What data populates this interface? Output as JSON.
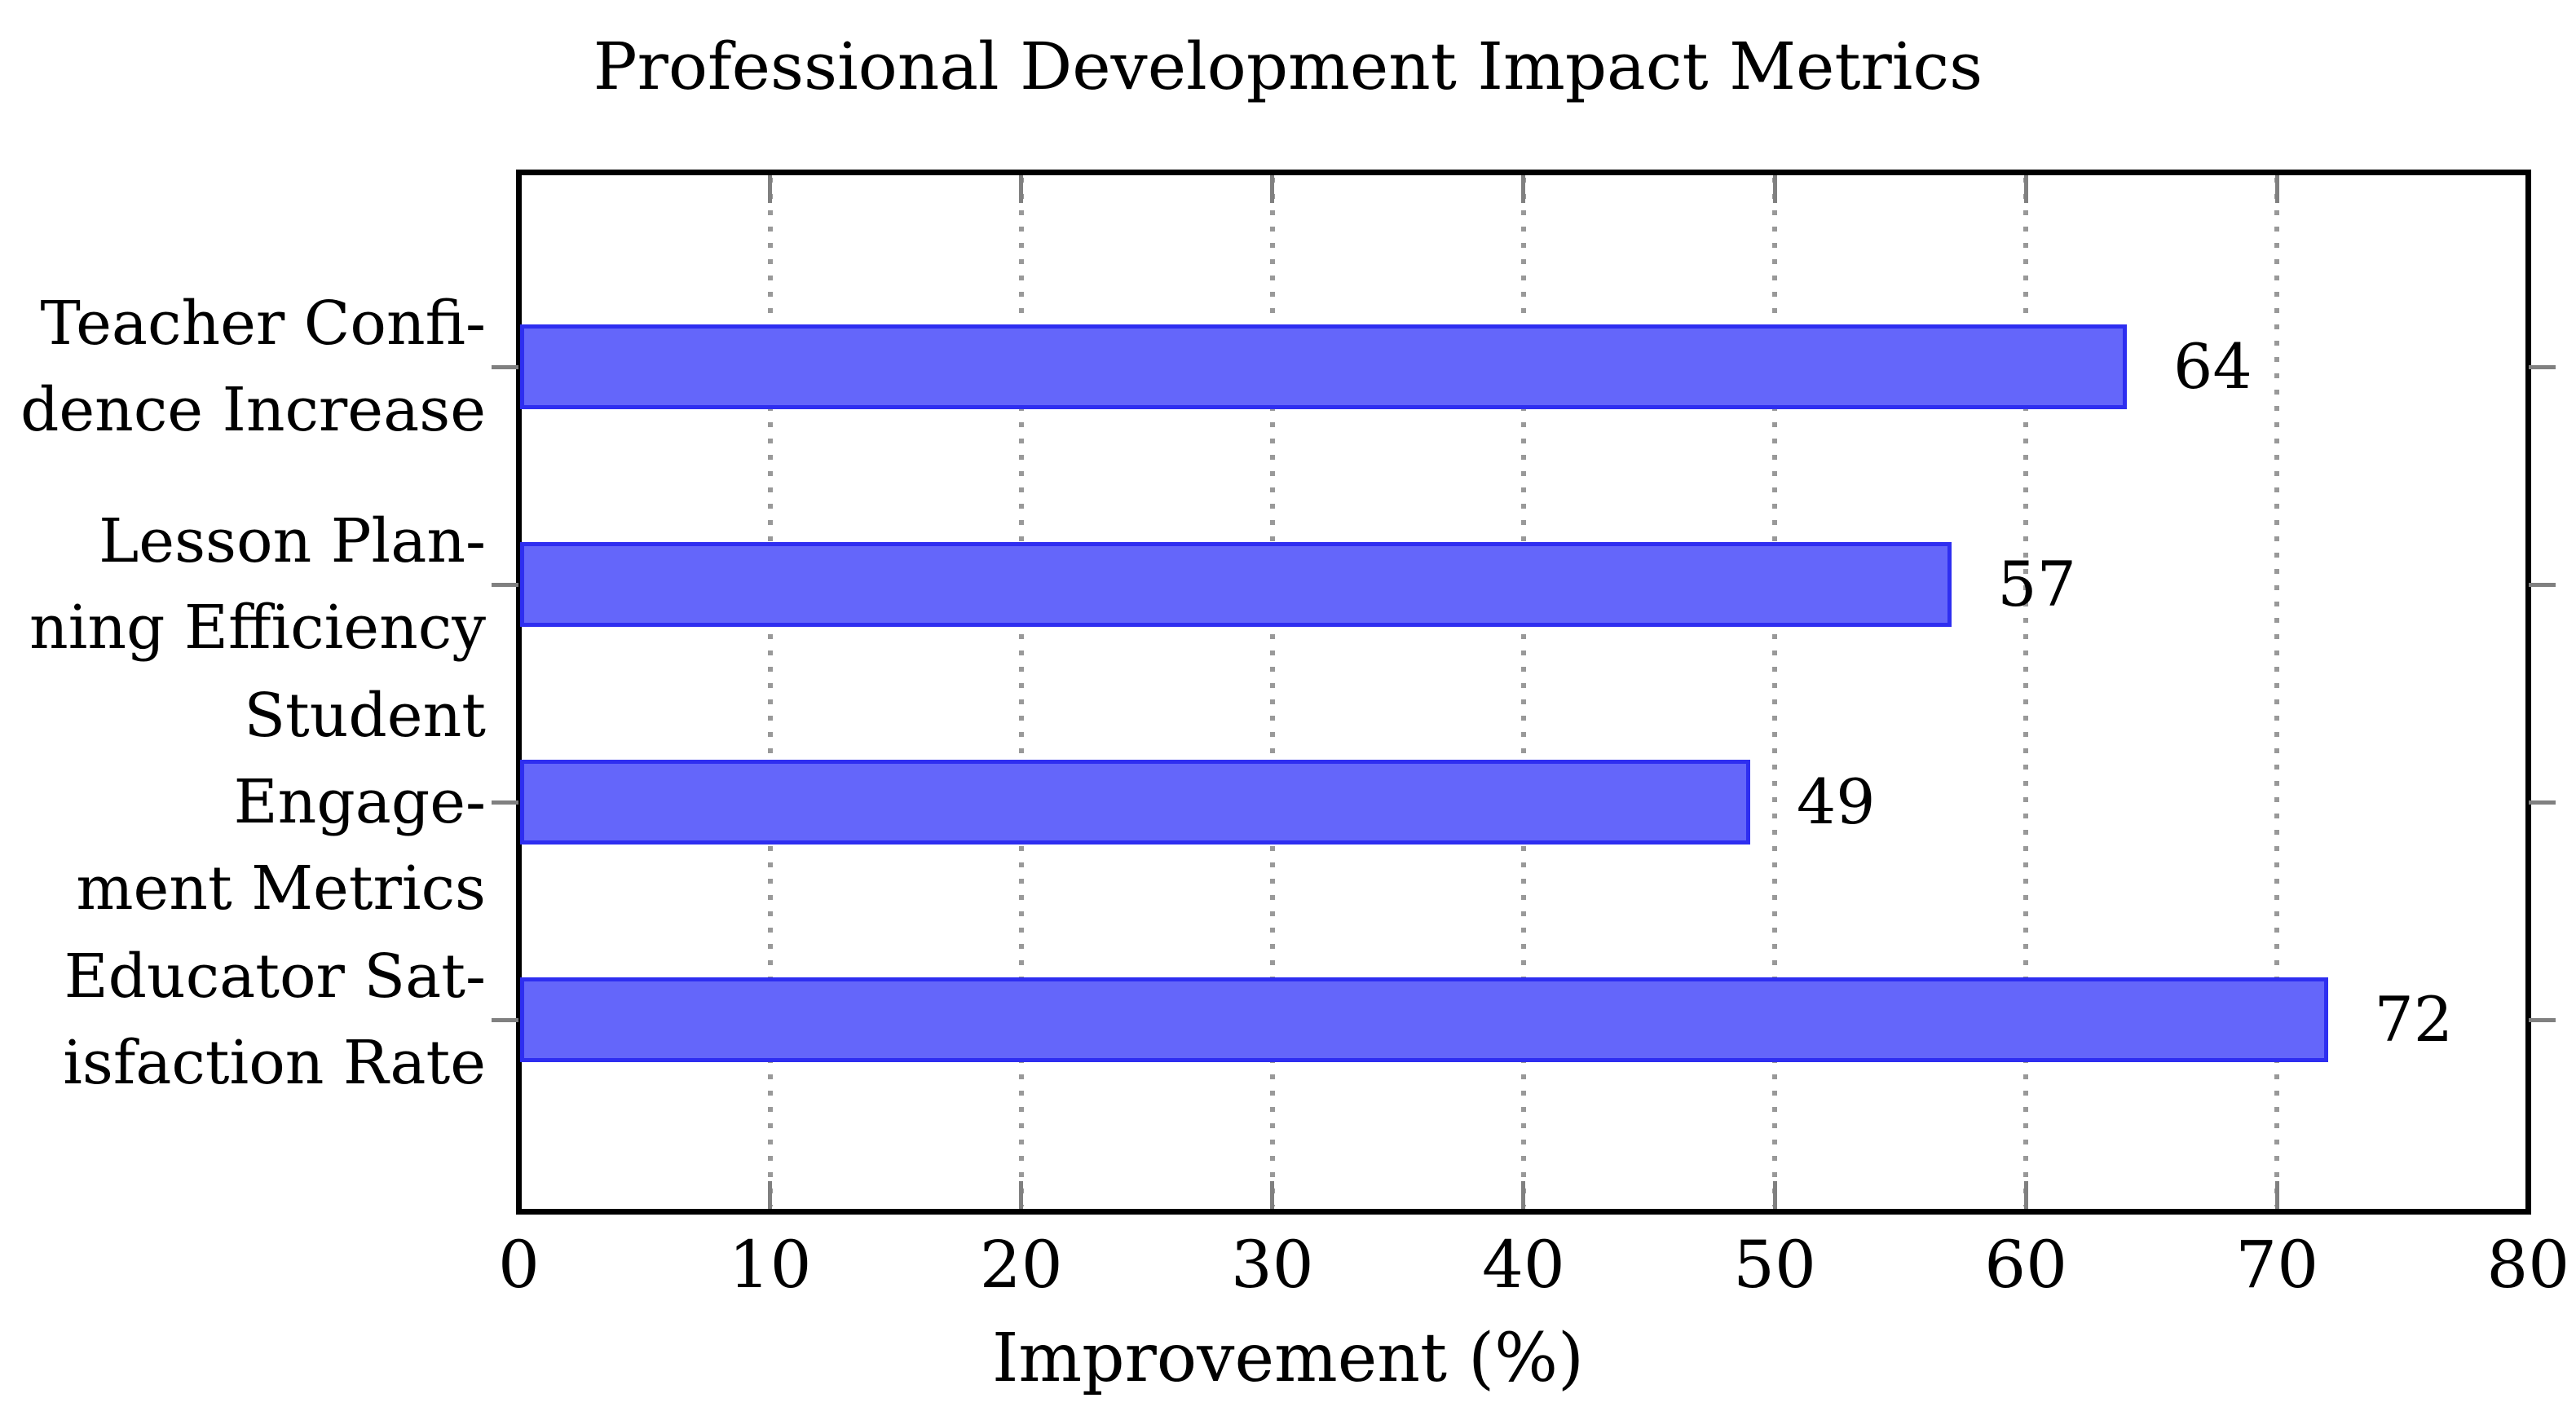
{
  "title": "Professional Development Impact Metrics",
  "chart_data": {
    "type": "bar",
    "orientation": "horizontal",
    "title": "Professional Development Impact Metrics",
    "xlabel": "Improvement (%)",
    "ylabel": "",
    "categories": [
      "Teacher Confidence Increase",
      "Lesson Planning Efficiency",
      "Student Engagement Metrics",
      "Educator Satisfaction Rate"
    ],
    "category_labels_wrapped": [
      "Teacher Confi-\ndence Increase",
      "Lesson Plan-\nning Efficiency",
      "Student Engage-\nment Metrics",
      "Educator Sat-\nisfaction Rate"
    ],
    "values": [
      64,
      57,
      49,
      72
    ],
    "value_labels": [
      "64",
      "57",
      "49",
      "72"
    ],
    "xlim": [
      0,
      80
    ],
    "xticks": [
      0,
      10,
      20,
      30,
      40,
      50,
      60,
      70,
      80
    ],
    "xtick_labels": [
      "0",
      "10",
      "20",
      "30",
      "40",
      "50",
      "60",
      "70",
      "80"
    ],
    "grid": "vertical-dotted",
    "legend": "none",
    "colors": {
      "bar_fill": "#6466fa",
      "bar_border": "#2e2ef0",
      "grid": "#999999",
      "tick": "#808080",
      "axis": "#000000",
      "text": "#000000",
      "background": "#ffffff"
    }
  }
}
